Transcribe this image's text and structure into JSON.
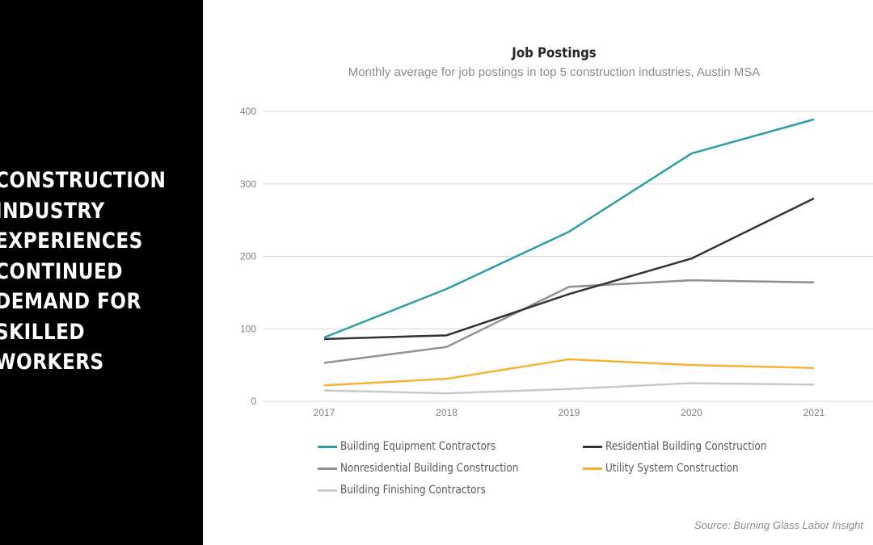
{
  "headline": {
    "lines": [
      "CONSTRUCTION",
      "INDUSTRY",
      "EXPERIENCES",
      "CONTINUED",
      "DEMAND FOR",
      "SKILLED",
      "WORKERS"
    ]
  },
  "colors": {
    "panel_bg": "#000000",
    "gridline": "#d9d9d9",
    "tick_text": "#7f7f7f"
  },
  "chart_data": {
    "type": "line",
    "title": "Job Postings",
    "subtitle": "Monthly average for job postings in  top 5 construction industries, Austin MSA",
    "xlabel": "",
    "ylabel": "",
    "x": [
      "2017",
      "2018",
      "2019",
      "2020",
      "2021"
    ],
    "ylim": [
      0,
      400
    ],
    "yticks": [
      "0",
      "100",
      "200",
      "300",
      "400"
    ],
    "grid": true,
    "legend_position": "bottom",
    "series": [
      {
        "name": "Building Equipment Contractors",
        "color": "#2e9ea5",
        "values": [
          88,
          155,
          234,
          342,
          389
        ]
      },
      {
        "name": "Residential Building Construction",
        "color": "#333333",
        "values": [
          86,
          91,
          148,
          197,
          280
        ]
      },
      {
        "name": "Nonresidential Building Construction",
        "color": "#8f8f8f",
        "values": [
          53,
          75,
          158,
          167,
          164
        ]
      },
      {
        "name": "Utility System Construction",
        "color": "#f5b335",
        "values": [
          22,
          31,
          58,
          50,
          46
        ]
      },
      {
        "name": "Building Finishing Contractors",
        "color": "#c8c8c8",
        "values": [
          15,
          11,
          17,
          25,
          23
        ]
      }
    ]
  },
  "source": "Source: Burning Glass Labor Insight"
}
